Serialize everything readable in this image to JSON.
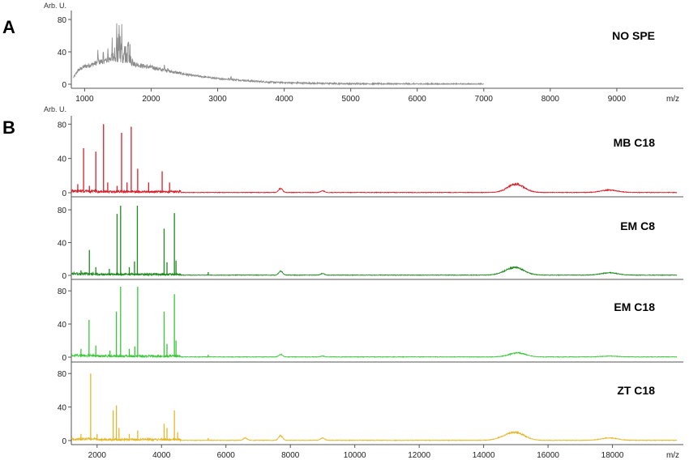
{
  "chart_data": [
    {
      "type": "line",
      "panel": "A",
      "ylabel": "Arb. U.",
      "xlabel": "m/z",
      "xlim": [
        800,
        10000
      ],
      "ylim": [
        0,
        85
      ],
      "xticks": [
        1000,
        2000,
        3000,
        4000,
        5000,
        6000,
        7000,
        8000,
        9000
      ],
      "yticks": [
        0,
        40,
        80
      ],
      "series": [
        {
          "name": "NO SPE",
          "color": "#8c8c8c",
          "x": [
            830,
            900,
            1000,
            1100,
            1200,
            1300,
            1400,
            1500,
            1600,
            1700,
            1800,
            1900,
            2000,
            2200,
            2400,
            2600,
            2800,
            3000,
            3200,
            3500,
            3800,
            4200,
            4600,
            5000,
            5500,
            6000,
            6500,
            7000
          ],
          "y": [
            8,
            17,
            22,
            24,
            27,
            29,
            30,
            31,
            29,
            26,
            24,
            22,
            21,
            17,
            14,
            11,
            9,
            7,
            6,
            4,
            2.5,
            1.5,
            1,
            0.6,
            0.4,
            0.2,
            0.1,
            0
          ]
        }
      ]
    },
    {
      "type": "line",
      "panel": "B",
      "ylabel": "Arb. U.",
      "xlabel": "m/z",
      "xlim": [
        1200,
        20200
      ],
      "ylim": [
        0,
        85
      ],
      "xticks": [
        2000,
        4000,
        6000,
        8000,
        10000,
        12000,
        14000,
        16000,
        18000
      ],
      "yticks": [
        0,
        40,
        80
      ],
      "series": [
        {
          "name": "MB C18",
          "color": "#d8202a",
          "peaks": [
            [
              1400,
              10
            ],
            [
              1580,
              52
            ],
            [
              1760,
              8
            ],
            [
              1960,
              48
            ],
            [
              2200,
              80
            ],
            [
              2330,
              12
            ],
            [
              2620,
              8
            ],
            [
              2760,
              70
            ],
            [
              2930,
              12
            ],
            [
              3060,
              77
            ],
            [
              3260,
              28
            ],
            [
              3600,
              12
            ],
            [
              4020,
              25
            ],
            [
              4250,
              12
            ],
            [
              7700,
              5
            ],
            [
              9000,
              2
            ],
            [
              15000,
              10
            ],
            [
              17900,
              3
            ]
          ]
        },
        {
          "name": "EM C8",
          "color": "#1e8a1e",
          "peaks": [
            [
              1500,
              6
            ],
            [
              1760,
              31
            ],
            [
              1960,
              10
            ],
            [
              2380,
              8
            ],
            [
              2620,
              75
            ],
            [
              2730,
              85
            ],
            [
              3000,
              10
            ],
            [
              3160,
              17
            ],
            [
              3250,
              85
            ],
            [
              4080,
              57
            ],
            [
              4170,
              16
            ],
            [
              4400,
              76
            ],
            [
              4450,
              18
            ],
            [
              5450,
              4
            ],
            [
              7700,
              5
            ],
            [
              9000,
              2
            ],
            [
              14800,
              4
            ],
            [
              15050,
              7
            ],
            [
              17900,
              3
            ]
          ]
        },
        {
          "name": "EM C18",
          "color": "#38c838",
          "peaks": [
            [
              1500,
              10
            ],
            [
              1750,
              45
            ],
            [
              1960,
              14
            ],
            [
              2400,
              8
            ],
            [
              2600,
              55
            ],
            [
              2730,
              85
            ],
            [
              3000,
              10
            ],
            [
              3170,
              13
            ],
            [
              3260,
              85
            ],
            [
              4080,
              55
            ],
            [
              4170,
              16
            ],
            [
              4400,
              76
            ],
            [
              4450,
              20
            ],
            [
              5450,
              3
            ],
            [
              7700,
              3
            ],
            [
              9000,
              1
            ],
            [
              15050,
              5
            ],
            [
              17900,
              1
            ]
          ]
        },
        {
          "name": "ZT C18",
          "color": "#e5b82a",
          "peaks": [
            [
              1500,
              8
            ],
            [
              1800,
              80
            ],
            [
              2000,
              8
            ],
            [
              2500,
              36
            ],
            [
              2600,
              42
            ],
            [
              2680,
              15
            ],
            [
              3000,
              8
            ],
            [
              3260,
              12
            ],
            [
              4080,
              20
            ],
            [
              4170,
              15
            ],
            [
              4400,
              36
            ],
            [
              4500,
              10
            ],
            [
              5450,
              3
            ],
            [
              6600,
              3
            ],
            [
              7700,
              6
            ],
            [
              9000,
              3
            ],
            [
              14700,
              4
            ],
            [
              15050,
              8
            ],
            [
              17900,
              3
            ]
          ]
        }
      ]
    }
  ],
  "labels": {
    "panel_a": "A",
    "panel_b": "B",
    "arb_unit": "Arb. U.",
    "mz": "m/z"
  }
}
